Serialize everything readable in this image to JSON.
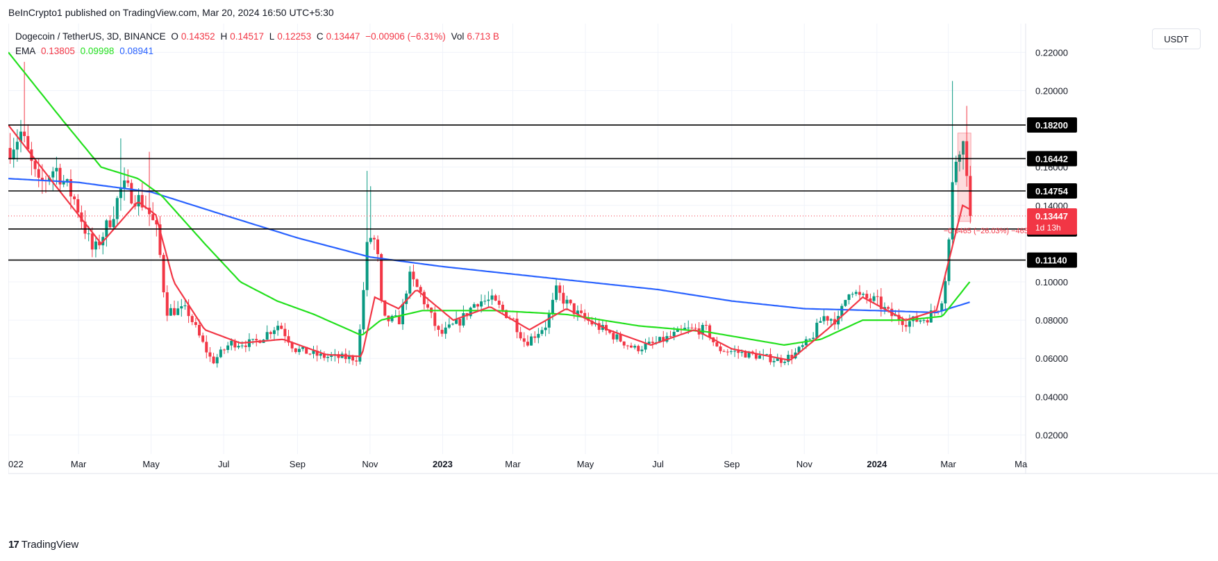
{
  "header": {
    "published": "BeInCrypto1 published on TradingView.com, Mar 20, 2024 16:50 UTC+5:30"
  },
  "legend": {
    "symbol": "Dogecoin / TetherUS, 3D, BINANCE",
    "o_label": "O",
    "o": "0.14352",
    "h_label": "H",
    "h": "0.14517",
    "l_label": "L",
    "l": "0.12253",
    "c_label": "C",
    "c": "0.13447",
    "change": "−0.00906 (−6.31%)",
    "vol_label": "Vol",
    "vol": "6.713 B",
    "ema_label": "EMA",
    "ema1": "0.13805",
    "ema2": "0.09998",
    "ema3": "0.08941"
  },
  "currency_button": "USDT",
  "footer": {
    "logo": "17",
    "brand": "TradingView"
  },
  "colors": {
    "up": "#089981",
    "down": "#f23645",
    "ema_short": "#f23645",
    "ema_mid": "#22e01c",
    "ema_long": "#2962ff",
    "level_line": "#000000"
  },
  "chart_data": {
    "type": "candlestick",
    "ylim": [
      0.01,
      0.235
    ],
    "y_ticks": [
      "0.22000",
      "0.20000",
      "0.16000",
      "0.14000",
      "0.10000",
      "0.08000",
      "0.06000",
      "0.04000",
      "0.02000"
    ],
    "y_tick_values": [
      0.22,
      0.2,
      0.16,
      0.14,
      0.1,
      0.08,
      0.06,
      0.04,
      0.02
    ],
    "x_range": [
      "2022-01-01",
      "2024-05-05"
    ],
    "x_ticks": [
      {
        "date": "2022-01-01",
        "label": "022"
      },
      {
        "date": "2022-03-01",
        "label": "Mar"
      },
      {
        "date": "2022-05-01",
        "label": "May"
      },
      {
        "date": "2022-07-01",
        "label": "Jul"
      },
      {
        "date": "2022-09-01",
        "label": "Sep"
      },
      {
        "date": "2022-11-01",
        "label": "Nov"
      },
      {
        "date": "2023-01-01",
        "label": "2023",
        "bold": true
      },
      {
        "date": "2023-03-01",
        "label": "Mar"
      },
      {
        "date": "2023-05-01",
        "label": "May"
      },
      {
        "date": "2023-07-01",
        "label": "Jul"
      },
      {
        "date": "2023-09-01",
        "label": "Sep"
      },
      {
        "date": "2023-11-01",
        "label": "Nov"
      },
      {
        "date": "2024-01-01",
        "label": "2024",
        "bold": true
      },
      {
        "date": "2024-03-01",
        "label": "Mar"
      },
      {
        "date": "2024-05-01",
        "label": "Ma"
      }
    ],
    "horizontal_levels": [
      {
        "value": 0.182,
        "label": "0.18200"
      },
      {
        "value": 0.16442,
        "label": "0.16442"
      },
      {
        "value": 0.14754,
        "label": "0.14754"
      },
      {
        "value": 0.12766,
        "label": "0.12766"
      },
      {
        "value": 0.1114,
        "label": "0.11140"
      }
    ],
    "current_price": {
      "value": 0.13447,
      "label": "0.13447",
      "countdown": "1d 13h"
    },
    "measure_label": "−0.0465 (−26.03%) −4653",
    "price_anchors": [
      [
        "2022-01-01",
        0.17
      ],
      [
        "2022-01-10",
        0.178
      ],
      [
        "2022-01-25",
        0.15
      ],
      [
        "2022-02-08",
        0.16
      ],
      [
        "2022-02-25",
        0.142
      ],
      [
        "2022-03-12",
        0.115
      ],
      [
        "2022-03-28",
        0.135
      ],
      [
        "2022-04-05",
        0.15
      ],
      [
        "2022-04-25",
        0.14
      ],
      [
        "2022-05-05",
        0.125
      ],
      [
        "2022-05-12",
        0.085
      ],
      [
        "2022-05-30",
        0.085
      ],
      [
        "2022-06-10",
        0.07
      ],
      [
        "2022-06-20",
        0.058
      ],
      [
        "2022-07-05",
        0.068
      ],
      [
        "2022-07-25",
        0.068
      ],
      [
        "2022-08-15",
        0.078
      ],
      [
        "2022-08-28",
        0.065
      ],
      [
        "2022-09-20",
        0.061
      ],
      [
        "2022-10-20",
        0.06
      ],
      [
        "2022-10-29",
        0.125
      ],
      [
        "2022-11-05",
        0.12
      ],
      [
        "2022-11-10",
        0.08
      ],
      [
        "2022-11-25",
        0.08
      ],
      [
        "2022-12-02",
        0.103
      ],
      [
        "2022-12-12",
        0.094
      ],
      [
        "2022-12-28",
        0.072
      ],
      [
        "2023-01-15",
        0.08
      ],
      [
        "2023-01-28",
        0.09
      ],
      [
        "2023-02-10",
        0.09
      ],
      [
        "2023-02-28",
        0.08
      ],
      [
        "2023-03-10",
        0.068
      ],
      [
        "2023-03-28",
        0.078
      ],
      [
        "2023-04-05",
        0.095
      ],
      [
        "2023-04-15",
        0.088
      ],
      [
        "2023-04-25",
        0.082
      ],
      [
        "2023-05-20",
        0.073
      ],
      [
        "2023-06-10",
        0.065
      ],
      [
        "2023-06-28",
        0.068
      ],
      [
        "2023-07-12",
        0.072
      ],
      [
        "2023-07-22",
        0.075
      ],
      [
        "2023-08-10",
        0.075
      ],
      [
        "2023-08-18",
        0.065
      ],
      [
        "2023-09-15",
        0.062
      ],
      [
        "2023-10-10",
        0.059
      ],
      [
        "2023-10-22",
        0.062
      ],
      [
        "2023-11-05",
        0.07
      ],
      [
        "2023-11-15",
        0.082
      ],
      [
        "2023-11-28",
        0.08
      ],
      [
        "2023-12-08",
        0.098
      ],
      [
        "2023-12-15",
        0.092
      ],
      [
        "2023-12-30",
        0.09
      ],
      [
        "2024-01-10",
        0.083
      ],
      [
        "2024-01-25",
        0.079
      ],
      [
        "2024-02-10",
        0.081
      ],
      [
        "2024-02-22",
        0.088
      ],
      [
        "2024-02-28",
        0.11
      ],
      [
        "2024-03-02",
        0.145
      ],
      [
        "2024-03-06",
        0.165
      ],
      [
        "2024-03-10",
        0.175
      ],
      [
        "2024-03-13",
        0.17
      ],
      [
        "2024-03-16",
        0.155
      ],
      [
        "2024-03-19",
        0.134
      ]
    ],
    "ema_short_anchors": [
      [
        "2022-01-01",
        0.182
      ],
      [
        "2022-02-10",
        0.15
      ],
      [
        "2022-03-20",
        0.12
      ],
      [
        "2022-04-20",
        0.142
      ],
      [
        "2022-05-05",
        0.135
      ],
      [
        "2022-05-20",
        0.1
      ],
      [
        "2022-06-15",
        0.075
      ],
      [
        "2022-07-15",
        0.068
      ],
      [
        "2022-08-20",
        0.07
      ],
      [
        "2022-09-25",
        0.062
      ],
      [
        "2022-10-25",
        0.061
      ],
      [
        "2022-11-05",
        0.092
      ],
      [
        "2022-11-25",
        0.086
      ],
      [
        "2022-12-10",
        0.096
      ],
      [
        "2023-01-10",
        0.08
      ],
      [
        "2023-02-10",
        0.087
      ],
      [
        "2023-03-15",
        0.075
      ],
      [
        "2023-04-15",
        0.086
      ],
      [
        "2023-05-20",
        0.075
      ],
      [
        "2023-06-25",
        0.067
      ],
      [
        "2023-08-01",
        0.075
      ],
      [
        "2023-09-01",
        0.065
      ],
      [
        "2023-10-20",
        0.059
      ],
      [
        "2023-11-20",
        0.075
      ],
      [
        "2023-12-20",
        0.092
      ],
      [
        "2024-01-25",
        0.08
      ],
      [
        "2024-02-20",
        0.085
      ],
      [
        "2024-03-05",
        0.12
      ],
      [
        "2024-03-13",
        0.14
      ],
      [
        "2024-03-19",
        0.138
      ]
    ],
    "ema_mid_anchors": [
      [
        "2022-01-01",
        0.22
      ],
      [
        "2022-02-15",
        0.185
      ],
      [
        "2022-03-20",
        0.16
      ],
      [
        "2022-04-20",
        0.154
      ],
      [
        "2022-05-10",
        0.145
      ],
      [
        "2022-06-15",
        0.12
      ],
      [
        "2022-07-15",
        0.1
      ],
      [
        "2022-08-15",
        0.09
      ],
      [
        "2022-09-15",
        0.083
      ],
      [
        "2022-10-25",
        0.072
      ],
      [
        "2022-11-10",
        0.08
      ],
      [
        "2022-12-15",
        0.085
      ],
      [
        "2023-02-15",
        0.085
      ],
      [
        "2023-04-15",
        0.083
      ],
      [
        "2023-06-15",
        0.077
      ],
      [
        "2023-08-10",
        0.074
      ],
      [
        "2023-10-15",
        0.067
      ],
      [
        "2023-11-15",
        0.07
      ],
      [
        "2023-12-20",
        0.08
      ],
      [
        "2024-01-25",
        0.08
      ],
      [
        "2024-02-25",
        0.082
      ],
      [
        "2024-03-19",
        0.1
      ]
    ],
    "ema_long_anchors": [
      [
        "2022-01-01",
        0.154
      ],
      [
        "2022-03-01",
        0.152
      ],
      [
        "2022-05-01",
        0.147
      ],
      [
        "2022-07-01",
        0.135
      ],
      [
        "2022-09-01",
        0.123
      ],
      [
        "2022-11-01",
        0.113
      ],
      [
        "2023-01-01",
        0.108
      ],
      [
        "2023-04-01",
        0.102
      ],
      [
        "2023-07-01",
        0.096
      ],
      [
        "2023-09-01",
        0.09
      ],
      [
        "2023-11-01",
        0.086
      ],
      [
        "2024-01-01",
        0.085
      ],
      [
        "2024-02-20",
        0.084
      ],
      [
        "2024-03-19",
        0.0894
      ]
    ]
  }
}
